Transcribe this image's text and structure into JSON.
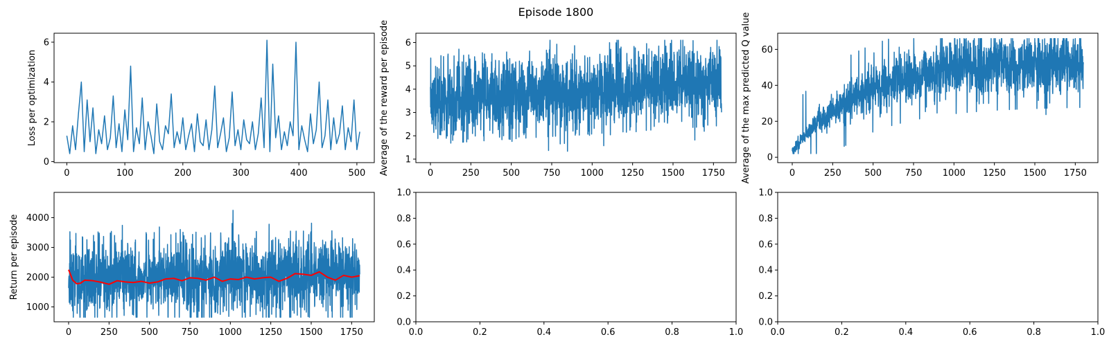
{
  "figure": {
    "title": "Episode 1800",
    "colors": {
      "series": "#1f77b4",
      "moving_average": "#ff0000",
      "axes": "#000000",
      "background": "#ffffff"
    }
  },
  "chart_data": [
    {
      "id": "loss",
      "type": "line",
      "title": "",
      "xlabel": "",
      "ylabel": "Loss per optimization",
      "xlim": [
        -22,
        530
      ],
      "ylim": [
        -0.05,
        6.45
      ],
      "xticks": [
        0,
        100,
        200,
        300,
        400,
        500
      ],
      "yticks": [
        0,
        2,
        4,
        6
      ],
      "grid": false,
      "series": [
        {
          "color": "#1f77b4",
          "x": [
            0,
            5,
            10,
            15,
            20,
            25,
            30,
            35,
            40,
            45,
            50,
            55,
            60,
            65,
            70,
            75,
            80,
            85,
            90,
            95,
            100,
            105,
            110,
            115,
            120,
            125,
            130,
            135,
            140,
            145,
            150,
            155,
            160,
            165,
            170,
            175,
            180,
            185,
            190,
            195,
            200,
            205,
            210,
            215,
            220,
            225,
            230,
            235,
            240,
            245,
            250,
            255,
            260,
            265,
            270,
            275,
            280,
            285,
            290,
            295,
            300,
            305,
            310,
            315,
            320,
            325,
            330,
            335,
            340,
            345,
            350,
            355,
            360,
            365,
            370,
            375,
            380,
            385,
            390,
            395,
            400,
            405,
            410,
            415,
            420,
            425,
            430,
            435,
            440,
            445,
            450,
            455,
            460,
            465,
            470,
            475,
            480,
            485,
            490,
            495,
            500,
            505
          ],
          "y": [
            1.3,
            0.4,
            1.8,
            0.6,
            2.4,
            4.0,
            0.5,
            3.1,
            1.0,
            2.7,
            0.4,
            1.6,
            0.9,
            2.3,
            0.6,
            1.2,
            3.3,
            0.7,
            1.9,
            0.5,
            2.6,
            1.1,
            4.8,
            0.5,
            1.7,
            0.9,
            3.2,
            0.6,
            2.0,
            1.3,
            0.4,
            2.9,
            1.0,
            0.6,
            1.8,
            1.4,
            3.4,
            0.7,
            1.5,
            0.9,
            2.2,
            0.6,
            1.3,
            1.9,
            0.5,
            2.4,
            1.0,
            0.8,
            2.1,
            0.6,
            1.6,
            3.8,
            0.7,
            1.4,
            2.2,
            0.5,
            1.2,
            3.5,
            0.8,
            1.6,
            0.6,
            2.1,
            1.1,
            0.9,
            2.0,
            0.6,
            1.4,
            3.2,
            0.7,
            6.1,
            0.5,
            4.9,
            1.2,
            2.3,
            0.6,
            1.5,
            0.8,
            2.0,
            1.3,
            6.0,
            0.6,
            1.8,
            1.1,
            0.5,
            2.4,
            0.9,
            1.6,
            4.0,
            0.7,
            1.3,
            3.1,
            0.6,
            2.2,
            0.9,
            1.4,
            2.8,
            0.6,
            1.7,
            1.0,
            3.1,
            0.6,
            1.5
          ]
        }
      ]
    },
    {
      "id": "avg-reward",
      "type": "line",
      "title": "",
      "xlabel": "",
      "ylabel": "Average of the reward per episode",
      "xlim": [
        -90,
        1890
      ],
      "ylim": [
        0.85,
        6.4
      ],
      "xticks": [
        0,
        250,
        500,
        750,
        1000,
        1250,
        1500,
        1750
      ],
      "yticks": [
        1,
        2,
        3,
        4,
        5,
        6
      ],
      "grid": false,
      "series": [
        {
          "color": "#1f77b4",
          "kind": "noisy",
          "x_start": 0,
          "x_end": 1800,
          "n_points": 1800,
          "start_level": 3.5,
          "end_level": 4.3,
          "low": 1.2,
          "high": 6.1
        }
      ]
    },
    {
      "id": "max-q",
      "type": "line",
      "title": "",
      "xlabel": "",
      "ylabel": "Average of the max predicted Q value",
      "xlim": [
        -90,
        1890
      ],
      "ylim": [
        -3,
        69
      ],
      "xticks": [
        0,
        250,
        500,
        750,
        1000,
        1250,
        1500,
        1750
      ],
      "yticks": [
        0,
        20,
        40,
        60
      ],
      "grid": false,
      "series": [
        {
          "color": "#1f77b4",
          "kind": "noisy-growth",
          "x_start": 0,
          "x_end": 1800,
          "n_points": 1800,
          "start_level": 3,
          "end_level": 52,
          "low": 2,
          "high": 66
        }
      ]
    },
    {
      "id": "return",
      "type": "line",
      "title": "",
      "xlabel": "",
      "ylabel": "Return per episode",
      "xlim": [
        -90,
        1890
      ],
      "ylim": [
        500,
        4850
      ],
      "xticks": [
        0,
        250,
        500,
        750,
        1000,
        1250,
        1500,
        1750
      ],
      "yticks": [
        1000,
        2000,
        3000,
        4000
      ],
      "grid": false,
      "series": [
        {
          "color": "#1f77b4",
          "kind": "noisy",
          "x_start": 0,
          "x_end": 1800,
          "n_points": 1800,
          "start_level": 1950,
          "end_level": 2050,
          "low": 650,
          "high": 4650
        },
        {
          "color": "#ff0000",
          "kind": "moving-average",
          "x": [
            0,
            25,
            50,
            75,
            100,
            150,
            200,
            250,
            300,
            350,
            400,
            450,
            500,
            550,
            600,
            650,
            700,
            750,
            800,
            850,
            900,
            950,
            1000,
            1050,
            1100,
            1150,
            1200,
            1250,
            1300,
            1350,
            1400,
            1450,
            1500,
            1550,
            1600,
            1650,
            1700,
            1750,
            1800
          ],
          "y": [
            2250,
            1900,
            1780,
            1800,
            1900,
            1880,
            1830,
            1760,
            1880,
            1840,
            1820,
            1860,
            1800,
            1840,
            1940,
            1960,
            1880,
            1980,
            1960,
            1900,
            2000,
            1860,
            1940,
            1920,
            2000,
            1940,
            1980,
            2000,
            1860,
            1960,
            2120,
            2100,
            2060,
            2180,
            2000,
            1900,
            2060,
            2000,
            2050
          ]
        }
      ]
    },
    {
      "id": "empty-1",
      "type": "line",
      "title": "",
      "xlabel": "",
      "ylabel": "",
      "xlim": [
        0,
        1
      ],
      "ylim": [
        0,
        1
      ],
      "xticks": [
        0,
        0.2,
        0.4,
        0.6,
        0.8,
        1.0
      ],
      "yticks": [
        0,
        0.2,
        0.4,
        0.6,
        0.8,
        1.0
      ],
      "xtick_labels": [
        "0.0",
        "0.2",
        "0.4",
        "0.6",
        "0.8",
        "1.0"
      ],
      "ytick_labels": [
        "0.0",
        "0.2",
        "0.4",
        "0.6",
        "0.8",
        "1.0"
      ],
      "grid": false,
      "series": []
    },
    {
      "id": "empty-2",
      "type": "line",
      "title": "",
      "xlabel": "",
      "ylabel": "",
      "xlim": [
        0,
        1
      ],
      "ylim": [
        0,
        1
      ],
      "xticks": [
        0,
        0.2,
        0.4,
        0.6,
        0.8,
        1.0
      ],
      "yticks": [
        0,
        0.2,
        0.4,
        0.6,
        0.8,
        1.0
      ],
      "xtick_labels": [
        "0.0",
        "0.2",
        "0.4",
        "0.6",
        "0.8",
        "1.0"
      ],
      "ytick_labels": [
        "0.0",
        "0.2",
        "0.4",
        "0.6",
        "0.8",
        "1.0"
      ],
      "grid": false,
      "series": []
    }
  ]
}
